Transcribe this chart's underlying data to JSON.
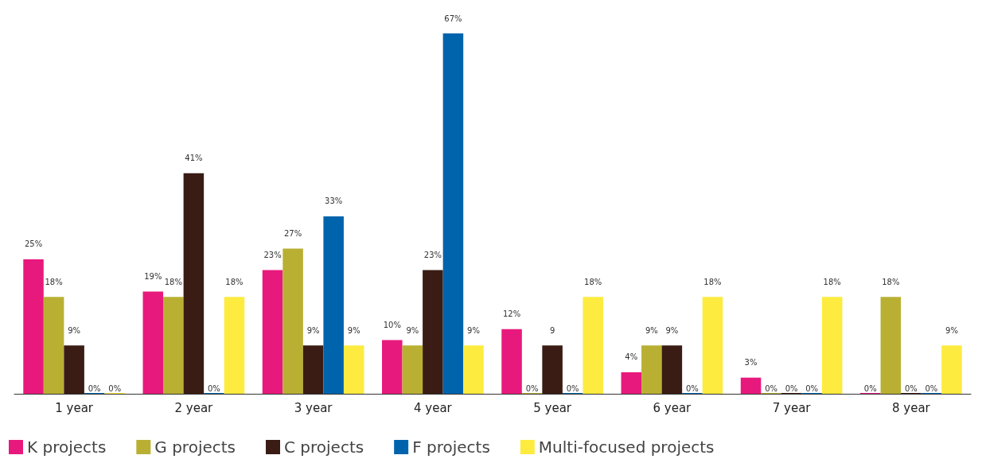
{
  "chart_data": {
    "type": "bar",
    "categories": [
      "1 year",
      "2 year",
      "3 year",
      "4 year",
      "5 year",
      "6 year",
      "7 year",
      "8 year"
    ],
    "series": [
      {
        "name": "K projects",
        "color": "#e8197d",
        "values": [
          25,
          19,
          23,
          10,
          12,
          4,
          3,
          0
        ],
        "value_labels": [
          "25%",
          "19%",
          "23%",
          "10%",
          "12%",
          "4%",
          "3%",
          "0%"
        ]
      },
      {
        "name": "G projects",
        "color": "#b9b033",
        "values": [
          18,
          18,
          27,
          9,
          0,
          9,
          0,
          18
        ],
        "value_labels": [
          "18%",
          "18%",
          "27%",
          "9%",
          "0%",
          "9%",
          "0%",
          "18%"
        ]
      },
      {
        "name": "C projects",
        "color": "#3a1c15",
        "values": [
          9,
          41,
          9,
          23,
          9,
          9,
          0,
          0
        ],
        "value_labels": [
          "9%",
          "41%",
          "9%",
          "23%",
          "9",
          "9%",
          "0%",
          "0%"
        ]
      },
      {
        "name": "F projects",
        "color": "#0064ad",
        "values": [
          0,
          0,
          33,
          67,
          0,
          0,
          0,
          0
        ],
        "value_labels": [
          "0%",
          "0%",
          "33%",
          "67%",
          "0%",
          "0%",
          "0%",
          "0%"
        ]
      },
      {
        "name": "Multi-focused projects",
        "color": "#fdeb40",
        "values": [
          0,
          18,
          9,
          9,
          18,
          18,
          18,
          9
        ],
        "value_labels": [
          "0%",
          "18%",
          "9%",
          "9%",
          "18%",
          "18%",
          "18%",
          "9%"
        ]
      }
    ],
    "legend": "bottom left"
  }
}
